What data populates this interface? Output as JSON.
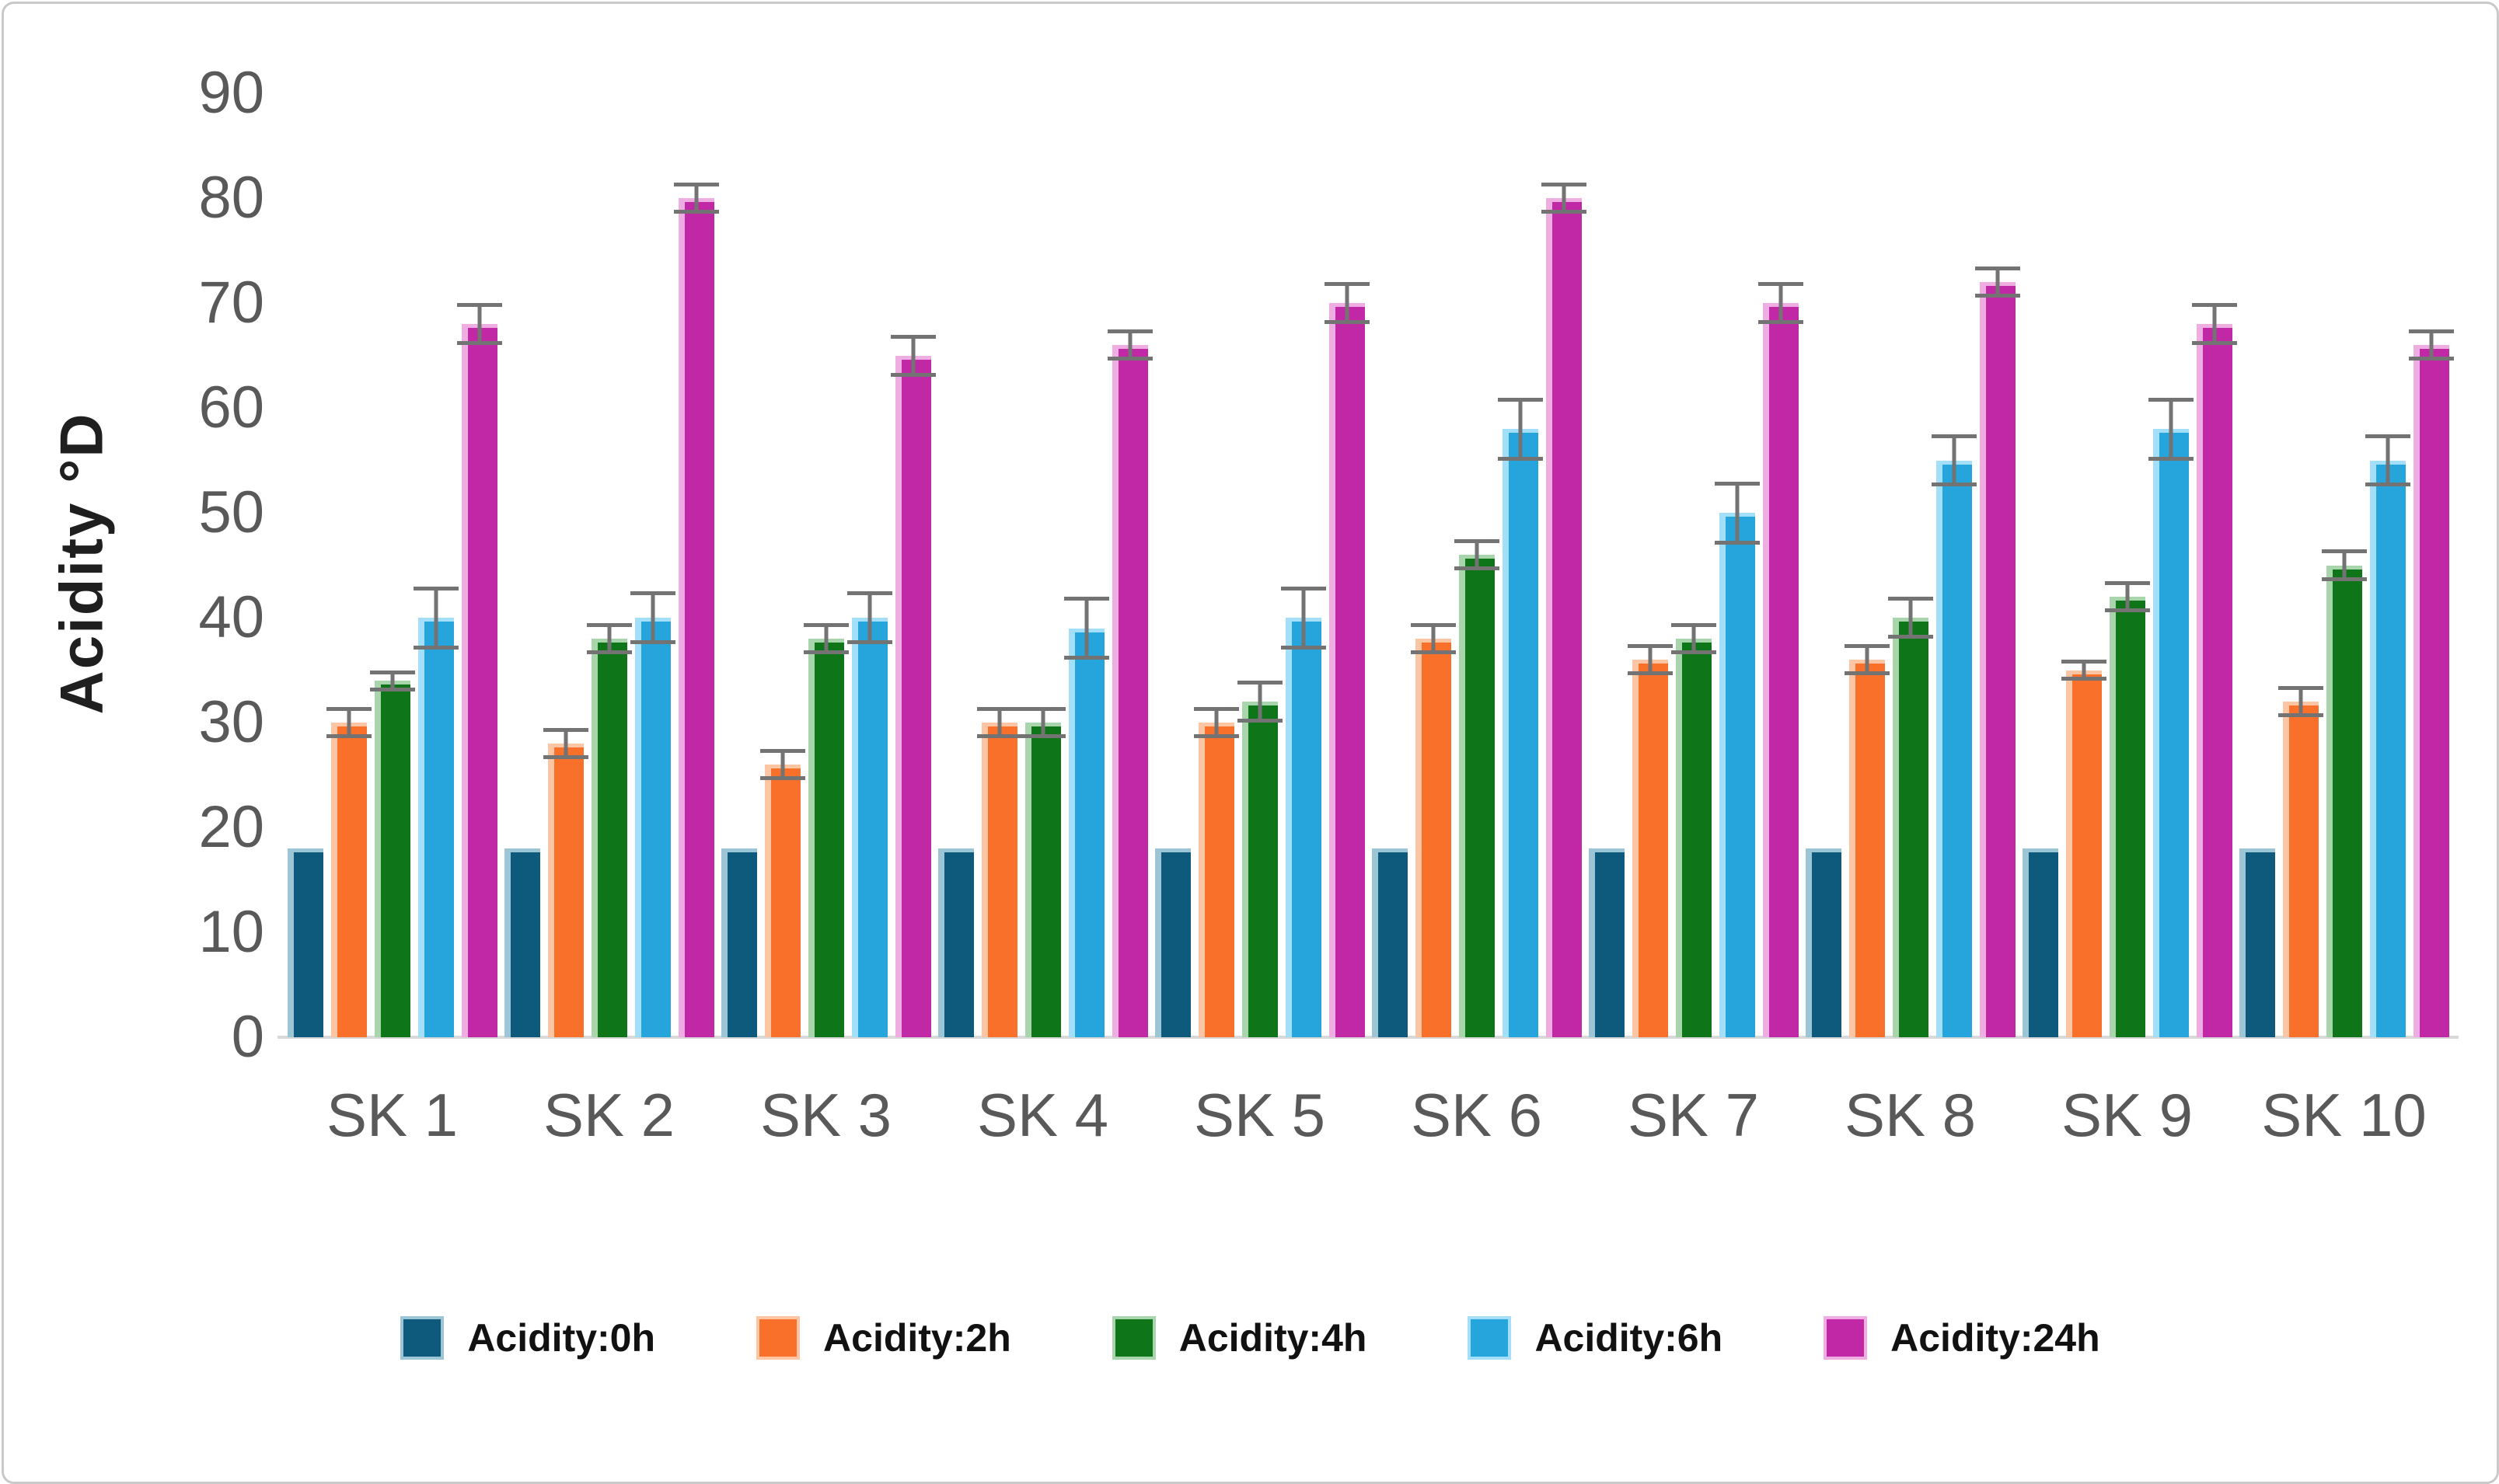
{
  "figure": {
    "background": "#FFFFFF",
    "border_color": "#C9C9C9"
  },
  "chart_data": {
    "type": "bar",
    "title": "",
    "xlabel": "",
    "ylabel": "Acidity °D",
    "ylim": [
      0,
      90
    ],
    "yticks": [
      0,
      10,
      20,
      30,
      40,
      50,
      60,
      70,
      80,
      90
    ],
    "grid": false,
    "legend_position": "bottom",
    "error_bars": true,
    "error_bar_color": "#737373",
    "baseline_color": "#D9D9D9",
    "tick_label_color": "#595959",
    "categories": [
      "SK 1",
      "SK 2",
      "SK 3",
      "SK 4",
      "SK 5",
      "SK 6",
      "SK 7",
      "SK 8",
      "SK 9",
      "SK 10"
    ],
    "series": [
      {
        "name": "Acidity:0h",
        "color": "#0D5A7C",
        "edge_color": "#9CC6D6",
        "values": [
          18,
          18,
          18,
          18,
          18,
          18,
          18,
          18,
          18,
          18
        ],
        "errors": [
          0,
          0,
          0,
          0,
          0,
          0,
          0,
          0,
          0,
          0
        ]
      },
      {
        "name": "Acidity:2h",
        "color": "#F9702B",
        "edge_color": "#FCC5A4",
        "values": [
          30,
          28,
          26,
          30,
          30,
          38,
          36,
          36,
          35,
          32
        ],
        "errors": [
          1.5,
          1.5,
          1.5,
          1.5,
          1.5,
          1.5,
          1.5,
          1.5,
          1,
          1.5
        ]
      },
      {
        "name": "Acidity:4h",
        "color": "#0E7519",
        "edge_color": "#A9D5AC",
        "values": [
          34,
          38,
          38,
          30,
          32,
          46,
          38,
          40,
          42,
          45
        ],
        "errors": [
          1,
          1.5,
          1.5,
          1.5,
          2,
          1.5,
          1.5,
          2,
          1.5,
          1.5
        ]
      },
      {
        "name": "Acidity:6h",
        "color": "#26A4DC",
        "edge_color": "#A3DFF8",
        "values": [
          40,
          40,
          40,
          39,
          40,
          58,
          50,
          55,
          58,
          55
        ],
        "errors": [
          3,
          2.5,
          2.5,
          3,
          3,
          3,
          3,
          2.5,
          3,
          2.5
        ]
      },
      {
        "name": "Acidity:24h",
        "color": "#C128A5",
        "edge_color": "#EFAEE2",
        "values": [
          68,
          80,
          65,
          66,
          70,
          80,
          70,
          72,
          68,
          66
        ],
        "errors": [
          2,
          1.5,
          2,
          1.5,
          2,
          1.5,
          2,
          1.5,
          2,
          1.5
        ]
      }
    ]
  }
}
